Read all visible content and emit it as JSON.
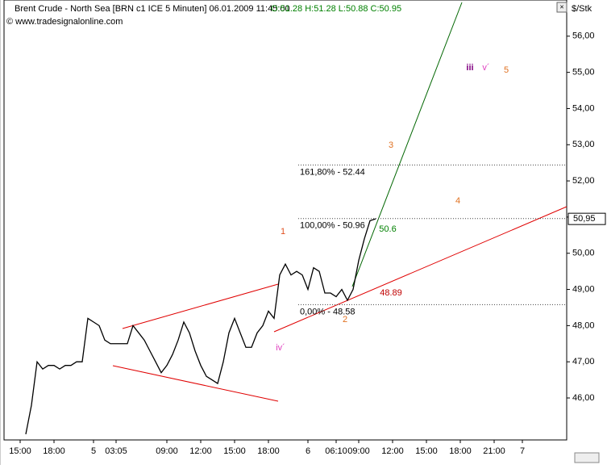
{
  "chart_data": {
    "type": "line",
    "title": "Brent Crude - North Sea [BRN c1 ICE  5 Minuten] 06.01.2009 11:45:00",
    "subtitle": "O:51.28 H:51.28 L:50.88 C:50.95",
    "source": "© www.tradesignalonline.com",
    "y_label": "$/Stk",
    "color": "#000000",
    "categories": [
      "15:00",
      null,
      null,
      null,
      null,
      null,
      "18:00",
      null,
      null,
      null,
      null,
      null,
      null,
      "5",
      null,
      null,
      null,
      "03:05",
      null,
      null,
      null,
      null,
      null,
      null,
      null,
      null,
      "09:00",
      null,
      null,
      null,
      null,
      null,
      "12:00",
      null,
      null,
      null,
      null,
      null,
      "15:00",
      null,
      null,
      null,
      null,
      null,
      "18:00",
      null,
      null,
      null,
      null,
      null,
      null,
      "6",
      null,
      null,
      null,
      null,
      "06:10",
      null,
      null,
      null,
      "09:00",
      null,
      null,
      null,
      null,
      null,
      "12:00",
      null,
      null,
      null,
      null,
      null,
      "15:00",
      null,
      null,
      null,
      null,
      null,
      "18:00",
      null,
      null,
      null,
      null,
      null,
      "21:00",
      null,
      null,
      null,
      null,
      "7",
      null,
      null,
      null,
      null,
      null,
      null,
      null
    ],
    "values": [
      null,
      45,
      45.8,
      47,
      46.8,
      46.9,
      46.9,
      46.8,
      46.9,
      46.9,
      47,
      47,
      48.2,
      48.1,
      48,
      47.6,
      47.5,
      47.5,
      47.5,
      47.5,
      48,
      47.8,
      47.6,
      47.3,
      47,
      46.7,
      46.9,
      47.2,
      47.6,
      48.1,
      47.8,
      47.3,
      46.9,
      46.6,
      46.5,
      46.4,
      47,
      47.8,
      48.2,
      47.8,
      47.4,
      47.4,
      47.8,
      48,
      48.4,
      48.2,
      49.4,
      49.7,
      49.4,
      49.5,
      49.4,
      49,
      49.6,
      49.5,
      48.9,
      48.9,
      48.8,
      49,
      48.7,
      49,
      49.8,
      50.4,
      50.9,
      50.95,
      null,
      null,
      null,
      null,
      null,
      null,
      null,
      null,
      null,
      null,
      null,
      null,
      null,
      null,
      null,
      null,
      null,
      null,
      null,
      null,
      null,
      null,
      null,
      null,
      null,
      null,
      null,
      null,
      null,
      null,
      null,
      null,
      null
    ],
    "ylim": [
      44.84,
      57.0
    ],
    "yticks": [
      {
        "value": 46,
        "label": "46,00"
      },
      {
        "value": 47,
        "label": "47,00"
      },
      {
        "value": 48,
        "label": "48,00"
      },
      {
        "value": 49,
        "label": "49,00"
      },
      {
        "value": 50,
        "label": "50,00"
      },
      {
        "value": 51,
        "label": "51,00"
      },
      {
        "value": 52,
        "label": "52,00"
      },
      {
        "value": 53,
        "label": "53,00"
      },
      {
        "value": 54,
        "label": "54,00"
      },
      {
        "value": 55,
        "label": "55,00"
      },
      {
        "value": 56,
        "label": "56,00"
      }
    ],
    "last_price": {
      "value": 50.95,
      "label": "50,95"
    },
    "levels": [
      {
        "value": 52.44,
        "label": "161,80% - 52.44"
      },
      {
        "value": 50.96,
        "label": "100,00% - 50.96"
      },
      {
        "value": 48.58,
        "label": "0,00% - 48.58"
      }
    ],
    "annotations": [
      "1",
      "2",
      "3",
      "4",
      "5",
      "iii",
      "v´",
      "iv´",
      "50.6",
      "48.89"
    ]
  }
}
